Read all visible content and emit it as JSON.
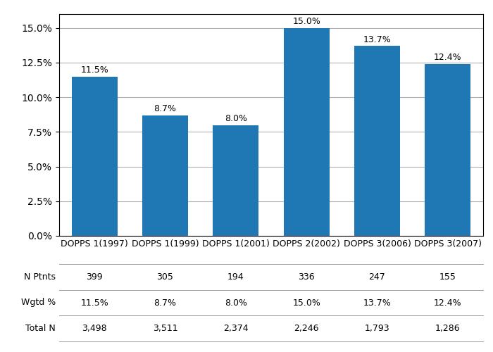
{
  "chart_data": {
    "type": "bar",
    "categories": [
      "DOPPS 1(1997)",
      "DOPPS 1(1999)",
      "DOPPS 1(2001)",
      "DOPPS 2(2002)",
      "DOPPS 3(2006)",
      "DOPPS 3(2007)"
    ],
    "values": [
      11.5,
      8.7,
      8.0,
      15.0,
      13.7,
      12.4
    ],
    "value_labels": [
      "11.5%",
      "8.7%",
      "8.0%",
      "15.0%",
      "13.7%",
      "12.4%"
    ],
    "data_labels": true,
    "ylim": [
      0,
      16.0
    ],
    "yticks": [
      {
        "value": 0.0,
        "label": "0.0%"
      },
      {
        "value": 2.5,
        "label": "2.5%"
      },
      {
        "value": 5.0,
        "label": "5.0%"
      },
      {
        "value": 7.5,
        "label": "7.5%"
      },
      {
        "value": 10.0,
        "label": "10.0%"
      },
      {
        "value": 12.5,
        "label": "12.5%"
      },
      {
        "value": 15.0,
        "label": "15.0%"
      }
    ],
    "grid": true,
    "table": [
      {
        "label": "N Ptnts",
        "values": [
          "399",
          "305",
          "194",
          "336",
          "247",
          "155"
        ]
      },
      {
        "label": "Wgtd %",
        "values": [
          "11.5%",
          "8.7%",
          "8.0%",
          "15.0%",
          "13.7%",
          "12.4%"
        ]
      },
      {
        "label": "Total N",
        "values": [
          "3,498",
          "3,511",
          "2,374",
          "2,246",
          "1,793",
          "1,286"
        ]
      }
    ]
  }
}
